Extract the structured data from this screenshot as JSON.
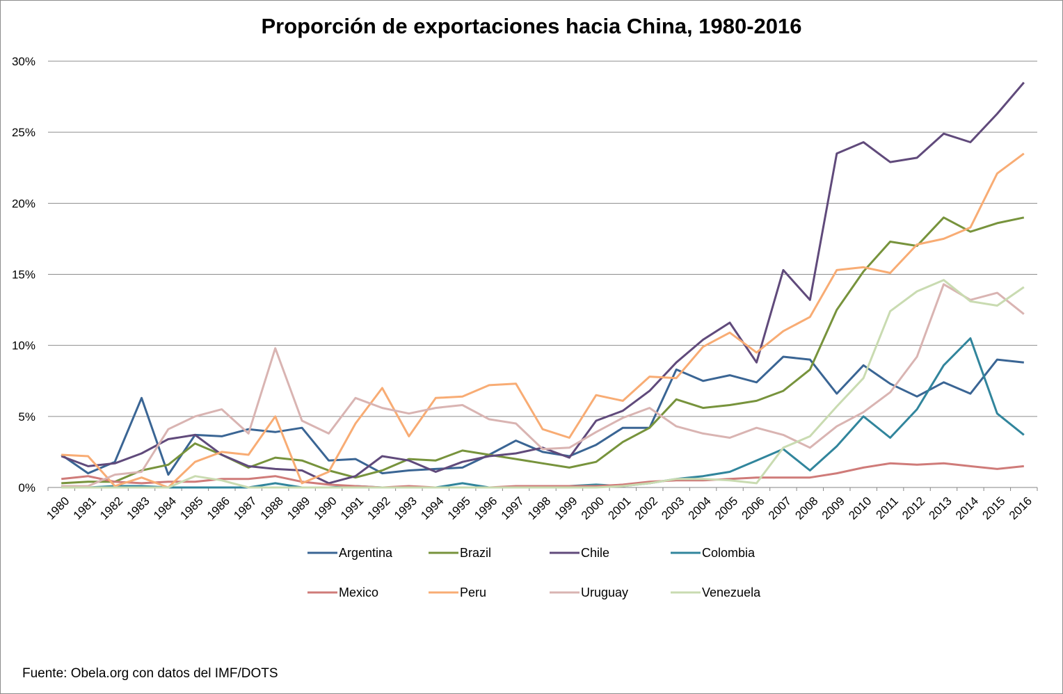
{
  "chart_data": {
    "type": "line",
    "title": "Proporción de exportaciones hacia China, 1980-2016",
    "source": "Fuente: Obela.org con datos del IMF/DOTS",
    "xlabel": "",
    "ylabel": "",
    "ylim": [
      0,
      30
    ],
    "yticks": [
      "0%",
      "5%",
      "10%",
      "15%",
      "20%",
      "25%",
      "30%"
    ],
    "grid": true,
    "legend_position": "bottom",
    "categories": [
      "1980",
      "1981",
      "1982",
      "1983",
      "1984",
      "1985",
      "1986",
      "1987",
      "1988",
      "1989",
      "1990",
      "1991",
      "1992",
      "1993",
      "1994",
      "1995",
      "1996",
      "1997",
      "1998",
      "1999",
      "2000",
      "2001",
      "2002",
      "2003",
      "2004",
      "2005",
      "2006",
      "2007",
      "2008",
      "2009",
      "2010",
      "2011",
      "2012",
      "2013",
      "2014",
      "2015",
      "2016"
    ],
    "series": [
      {
        "name": "Argentina",
        "color": "#3a6594",
        "values": [
          2.3,
          1.0,
          1.8,
          6.3,
          0.9,
          3.7,
          3.6,
          4.1,
          3.9,
          4.2,
          1.9,
          2.0,
          1.0,
          1.2,
          1.3,
          1.4,
          2.3,
          3.3,
          2.5,
          2.2,
          3.0,
          4.2,
          4.2,
          8.3,
          7.5,
          7.9,
          7.4,
          9.2,
          9.0,
          6.6,
          8.6,
          7.3,
          6.4,
          7.4,
          6.6,
          9.0,
          8.8
        ]
      },
      {
        "name": "Brazil",
        "color": "#77933c",
        "values": [
          0.3,
          0.4,
          0.4,
          1.2,
          1.6,
          3.1,
          2.3,
          1.4,
          2.1,
          1.9,
          1.2,
          0.7,
          1.2,
          2.0,
          1.9,
          2.6,
          2.3,
          2.0,
          1.7,
          1.4,
          1.8,
          3.2,
          4.2,
          6.2,
          5.6,
          5.8,
          6.1,
          6.8,
          8.3,
          12.5,
          15.2,
          17.3,
          17.0,
          19.0,
          18.0,
          18.6,
          19.0
        ]
      },
      {
        "name": "Chile",
        "color": "#604a7b",
        "values": [
          2.2,
          1.5,
          1.7,
          2.4,
          3.4,
          3.7,
          2.3,
          1.5,
          1.3,
          1.2,
          0.3,
          0.8,
          2.2,
          1.9,
          1.1,
          1.8,
          2.2,
          2.4,
          2.8,
          2.1,
          4.7,
          5.4,
          6.8,
          8.8,
          10.4,
          11.6,
          8.8,
          15.3,
          13.2,
          23.5,
          24.3,
          22.9,
          23.2,
          24.9,
          24.3,
          26.3,
          28.5
        ]
      },
      {
        "name": "Colombia",
        "color": "#31859c",
        "values": [
          0.1,
          0.0,
          0.1,
          0.1,
          0.0,
          0.0,
          0.0,
          0.0,
          0.3,
          0.0,
          0.0,
          0.1,
          0.0,
          0.0,
          0.0,
          0.3,
          0.0,
          0.0,
          0.0,
          0.1,
          0.2,
          0.1,
          0.3,
          0.6,
          0.8,
          1.1,
          1.9,
          2.7,
          1.2,
          2.9,
          5.0,
          3.5,
          5.5,
          8.6,
          10.5,
          5.2,
          3.7
        ]
      },
      {
        "name": "Mexico",
        "color": "#cf7b79",
        "values": [
          0.6,
          0.8,
          0.4,
          0.3,
          0.4,
          0.4,
          0.6,
          0.6,
          0.8,
          0.4,
          0.2,
          0.1,
          0.0,
          0.1,
          0.0,
          0.0,
          0.0,
          0.1,
          0.1,
          0.1,
          0.1,
          0.2,
          0.4,
          0.5,
          0.5,
          0.6,
          0.7,
          0.7,
          0.7,
          1.0,
          1.4,
          1.7,
          1.6,
          1.7,
          1.5,
          1.3,
          1.5
        ]
      },
      {
        "name": "Peru",
        "color": "#f8ac74",
        "values": [
          2.3,
          2.2,
          0.1,
          0.7,
          0.0,
          1.8,
          2.5,
          2.3,
          5.0,
          0.3,
          1.1,
          4.5,
          7.0,
          3.6,
          6.3,
          6.4,
          7.2,
          7.3,
          4.1,
          3.5,
          6.5,
          6.1,
          7.8,
          7.7,
          9.9,
          10.9,
          9.5,
          11.0,
          12.0,
          15.3,
          15.5,
          15.1,
          17.1,
          17.5,
          18.3,
          22.1,
          23.5
        ]
      },
      {
        "name": "Uruguay",
        "color": "#d9b4b2",
        "values": [
          0.1,
          0.1,
          0.9,
          1.1,
          4.1,
          5.0,
          5.5,
          3.8,
          9.8,
          4.7,
          3.8,
          6.3,
          5.6,
          5.2,
          5.6,
          5.8,
          4.8,
          4.5,
          2.7,
          2.8,
          3.9,
          4.9,
          5.6,
          4.3,
          3.8,
          3.5,
          4.2,
          3.7,
          2.8,
          4.3,
          5.3,
          6.7,
          9.2,
          14.3,
          13.2,
          13.7,
          12.2
        ]
      },
      {
        "name": "Venezuela",
        "color": "#c9dbb1",
        "values": [
          0.0,
          0.0,
          0.0,
          0.0,
          0.0,
          0.8,
          0.5,
          0.0,
          0.0,
          0.0,
          0.0,
          0.0,
          0.0,
          0.0,
          0.0,
          0.0,
          0.0,
          0.0,
          0.0,
          0.0,
          0.0,
          0.1,
          0.3,
          0.6,
          0.6,
          0.5,
          0.3,
          2.8,
          3.6,
          5.7,
          7.7,
          12.4,
          13.8,
          14.6,
          13.1,
          12.8,
          14.1
        ]
      }
    ]
  }
}
